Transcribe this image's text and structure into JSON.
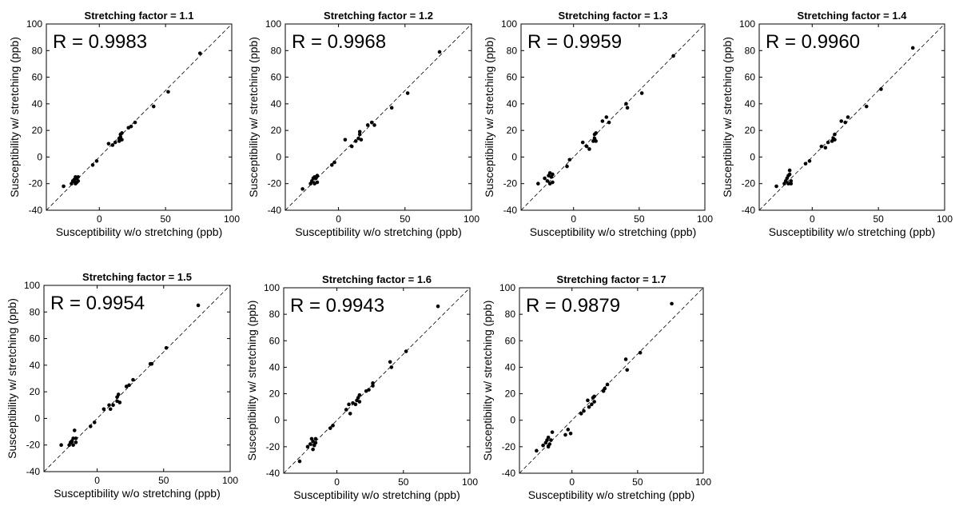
{
  "chart_data": [
    {
      "type": "scatter",
      "title": "Stretching factor = 1.1",
      "annotation": "R = 0.9983",
      "xlabel": "Susceptibility w/o stretching (ppb)",
      "ylabel": "Susceptibility w/ stretching (ppb)",
      "xlim": [
        -40,
        100
      ],
      "ylim": [
        -40,
        100
      ],
      "xticks": [
        0,
        50,
        100
      ],
      "yticks": [
        -40,
        -20,
        0,
        20,
        40,
        60,
        80,
        100
      ],
      "reference_line": "y = x (dashed)",
      "grid": false,
      "points": [
        [
          -27,
          -22
        ],
        [
          -21,
          -20
        ],
        [
          -20,
          -18
        ],
        [
          -19,
          -17
        ],
        [
          -18,
          -15
        ],
        [
          -18,
          -20
        ],
        [
          -17,
          -16
        ],
        [
          -16,
          -18
        ],
        [
          -16,
          -15
        ],
        [
          -17,
          -19
        ],
        [
          -5,
          -6
        ],
        [
          -2,
          -3
        ],
        [
          7,
          10
        ],
        [
          10,
          9
        ],
        [
          12,
          11
        ],
        [
          15,
          12
        ],
        [
          15,
          14
        ],
        [
          16,
          15
        ],
        [
          16,
          17
        ],
        [
          17,
          18
        ],
        [
          17,
          13
        ],
        [
          22,
          22
        ],
        [
          24,
          23
        ],
        [
          27,
          26
        ],
        [
          41,
          38
        ],
        [
          52,
          49
        ],
        [
          76,
          78
        ]
      ]
    },
    {
      "type": "scatter",
      "title": "Stretching factor = 1.2",
      "annotation": "R = 0.9968",
      "xlabel": "Susceptibility w/o stretching (ppb)",
      "ylabel": "Susceptibility w/ stretching (ppb)",
      "xlim": [
        -40,
        100
      ],
      "ylim": [
        -40,
        100
      ],
      "xticks": [
        0,
        50,
        100
      ],
      "yticks": [
        -40,
        -20,
        0,
        20,
        40,
        60,
        80,
        100
      ],
      "reference_line": "y = x (dashed)",
      "grid": false,
      "points": [
        [
          -27,
          -24
        ],
        [
          -21,
          -20
        ],
        [
          -20,
          -18
        ],
        [
          -19,
          -16
        ],
        [
          -18,
          -15
        ],
        [
          -18,
          -20
        ],
        [
          -17,
          -16
        ],
        [
          -16,
          -19
        ],
        [
          -16,
          -14
        ],
        [
          -5,
          -6
        ],
        [
          -3,
          -4
        ],
        [
          5,
          13
        ],
        [
          10,
          8
        ],
        [
          13,
          12
        ],
        [
          15,
          14
        ],
        [
          16,
          17
        ],
        [
          16,
          19
        ],
        [
          17,
          13
        ],
        [
          22,
          24
        ],
        [
          25,
          26
        ],
        [
          27,
          24
        ],
        [
          40,
          37
        ],
        [
          52,
          48
        ],
        [
          76,
          79
        ]
      ]
    },
    {
      "type": "scatter",
      "title": "Stretching factor = 1.3",
      "annotation": "R = 0.9959",
      "xlabel": "Susceptibility w/o stretching (ppb)",
      "ylabel": "Susceptibility w/ stretching (ppb)",
      "xlim": [
        -40,
        100
      ],
      "ylim": [
        -40,
        100
      ],
      "xticks": [
        0,
        50,
        100
      ],
      "yticks": [
        -40,
        -20,
        0,
        20,
        40,
        60,
        80,
        100
      ],
      "reference_line": "y = x (dashed)",
      "grid": false,
      "points": [
        [
          -27,
          -20
        ],
        [
          -22,
          -16
        ],
        [
          -20,
          -18
        ],
        [
          -19,
          -14
        ],
        [
          -18,
          -12
        ],
        [
          -18,
          -20
        ],
        [
          -17,
          -15
        ],
        [
          -16,
          -19
        ],
        [
          -16,
          -13
        ],
        [
          -5,
          -7
        ],
        [
          -3,
          -2
        ],
        [
          7,
          11
        ],
        [
          10,
          8
        ],
        [
          12,
          6
        ],
        [
          15,
          12
        ],
        [
          16,
          14
        ],
        [
          16,
          17
        ],
        [
          17,
          18
        ],
        [
          17,
          12
        ],
        [
          22,
          27
        ],
        [
          25,
          30
        ],
        [
          27,
          26
        ],
        [
          40,
          40
        ],
        [
          41,
          37
        ],
        [
          52,
          48
        ],
        [
          76,
          76
        ]
      ]
    },
    {
      "type": "scatter",
      "title": "Stretching factor = 1.4",
      "annotation": "R = 0.9960",
      "xlabel": "Susceptibility w/o stretching (ppb)",
      "ylabel": "Susceptibility w/ stretching (ppb)",
      "xlim": [
        -40,
        100
      ],
      "ylim": [
        -40,
        100
      ],
      "xticks": [
        0,
        50,
        100
      ],
      "yticks": [
        -40,
        -20,
        0,
        20,
        40,
        60,
        80,
        100
      ],
      "reference_line": "y = x (dashed)",
      "grid": false,
      "points": [
        [
          -27,
          -22
        ],
        [
          -21,
          -20
        ],
        [
          -20,
          -18
        ],
        [
          -19,
          -16
        ],
        [
          -18,
          -14
        ],
        [
          -18,
          -20
        ],
        [
          -17,
          -10
        ],
        [
          -17,
          -13
        ],
        [
          -16,
          -18
        ],
        [
          -16,
          -20
        ],
        [
          -5,
          -5
        ],
        [
          -2,
          -3
        ],
        [
          7,
          8
        ],
        [
          10,
          7
        ],
        [
          12,
          11
        ],
        [
          15,
          12
        ],
        [
          16,
          14
        ],
        [
          17,
          17
        ],
        [
          17,
          13
        ],
        [
          22,
          27
        ],
        [
          25,
          26
        ],
        [
          27,
          30
        ],
        [
          41,
          38
        ],
        [
          52,
          51
        ],
        [
          76,
          82
        ]
      ]
    },
    {
      "type": "scatter",
      "title": "Stretching factor = 1.5",
      "annotation": "R = 0.9954",
      "xlabel": "Susceptibility w/o stretching (ppb)",
      "ylabel": "Susceptibility w/ stretching (ppb)",
      "xlim": [
        -40,
        100
      ],
      "ylim": [
        -40,
        100
      ],
      "xticks": [
        0,
        50,
        100
      ],
      "yticks": [
        -40,
        -20,
        0,
        20,
        40,
        60,
        80,
        100
      ],
      "reference_line": "y = x (dashed)",
      "grid": false,
      "points": [
        [
          -27,
          -20
        ],
        [
          -21,
          -20
        ],
        [
          -20,
          -18
        ],
        [
          -19,
          -17
        ],
        [
          -18,
          -15
        ],
        [
          -18,
          -20
        ],
        [
          -17,
          -9
        ],
        [
          -16,
          -18
        ],
        [
          -16,
          -15
        ],
        [
          -5,
          -6
        ],
        [
          -2,
          -3
        ],
        [
          5,
          7
        ],
        [
          9,
          10
        ],
        [
          10,
          7
        ],
        [
          12,
          10
        ],
        [
          15,
          13
        ],
        [
          15,
          16
        ],
        [
          16,
          18
        ],
        [
          17,
          12
        ],
        [
          22,
          24
        ],
        [
          24,
          25
        ],
        [
          27,
          29
        ],
        [
          40,
          41
        ],
        [
          41,
          41
        ],
        [
          52,
          53
        ],
        [
          76,
          85
        ]
      ]
    },
    {
      "type": "scatter",
      "title": "Stretching factor = 1.6",
      "annotation": "R = 0.9943",
      "xlabel": "Susceptibility w/o stretching (ppb)",
      "ylabel": "Susceptibility w/ stretching (ppb)",
      "xlim": [
        -40,
        100
      ],
      "ylim": [
        -40,
        100
      ],
      "xticks": [
        0,
        50,
        100
      ],
      "yticks": [
        -40,
        -20,
        0,
        20,
        40,
        60,
        80,
        100
      ],
      "reference_line": "y = x (dashed)",
      "grid": false,
      "points": [
        [
          -28,
          -31
        ],
        [
          -22,
          -20
        ],
        [
          -20,
          -18
        ],
        [
          -19,
          -14
        ],
        [
          -18,
          -16
        ],
        [
          -18,
          -22
        ],
        [
          -17,
          -19
        ],
        [
          -16,
          -14
        ],
        [
          -16,
          -17
        ],
        [
          -5,
          -6
        ],
        [
          -3,
          -4
        ],
        [
          7,
          8
        ],
        [
          9,
          12
        ],
        [
          10,
          5
        ],
        [
          12,
          13
        ],
        [
          14,
          12
        ],
        [
          15,
          15
        ],
        [
          16,
          17
        ],
        [
          17,
          19
        ],
        [
          17,
          14
        ],
        [
          22,
          22
        ],
        [
          24,
          23
        ],
        [
          27,
          26
        ],
        [
          27,
          28
        ],
        [
          40,
          44
        ],
        [
          41,
          40
        ],
        [
          52,
          52
        ],
        [
          76,
          86
        ]
      ]
    },
    {
      "type": "scatter",
      "title": "Stretching factor = 1.7",
      "annotation": "R = 0.9879",
      "xlabel": "Susceptibility w/o stretching (ppb)",
      "ylabel": "Susceptibility w/ stretching (ppb)",
      "xlim": [
        -40,
        100
      ],
      "ylim": [
        -40,
        100
      ],
      "xticks": [
        0,
        50,
        100
      ],
      "yticks": [
        -40,
        -20,
        0,
        20,
        40,
        60,
        80,
        100
      ],
      "reference_line": "y = x (dashed)",
      "grid": false,
      "points": [
        [
          -27,
          -23
        ],
        [
          -22,
          -19
        ],
        [
          -20,
          -17
        ],
        [
          -19,
          -15
        ],
        [
          -18,
          -13
        ],
        [
          -18,
          -20
        ],
        [
          -17,
          -18
        ],
        [
          -16,
          -15
        ],
        [
          -15,
          -9
        ],
        [
          -5,
          -11
        ],
        [
          -3,
          -7
        ],
        [
          -1,
          -10
        ],
        [
          7,
          5
        ],
        [
          9,
          7
        ],
        [
          12,
          15
        ],
        [
          13,
          10
        ],
        [
          15,
          12
        ],
        [
          16,
          17
        ],
        [
          17,
          14
        ],
        [
          17,
          18
        ],
        [
          24,
          22
        ],
        [
          25,
          24
        ],
        [
          27,
          27
        ],
        [
          41,
          46
        ],
        [
          42,
          38
        ],
        [
          52,
          51
        ],
        [
          76,
          88
        ]
      ]
    }
  ]
}
